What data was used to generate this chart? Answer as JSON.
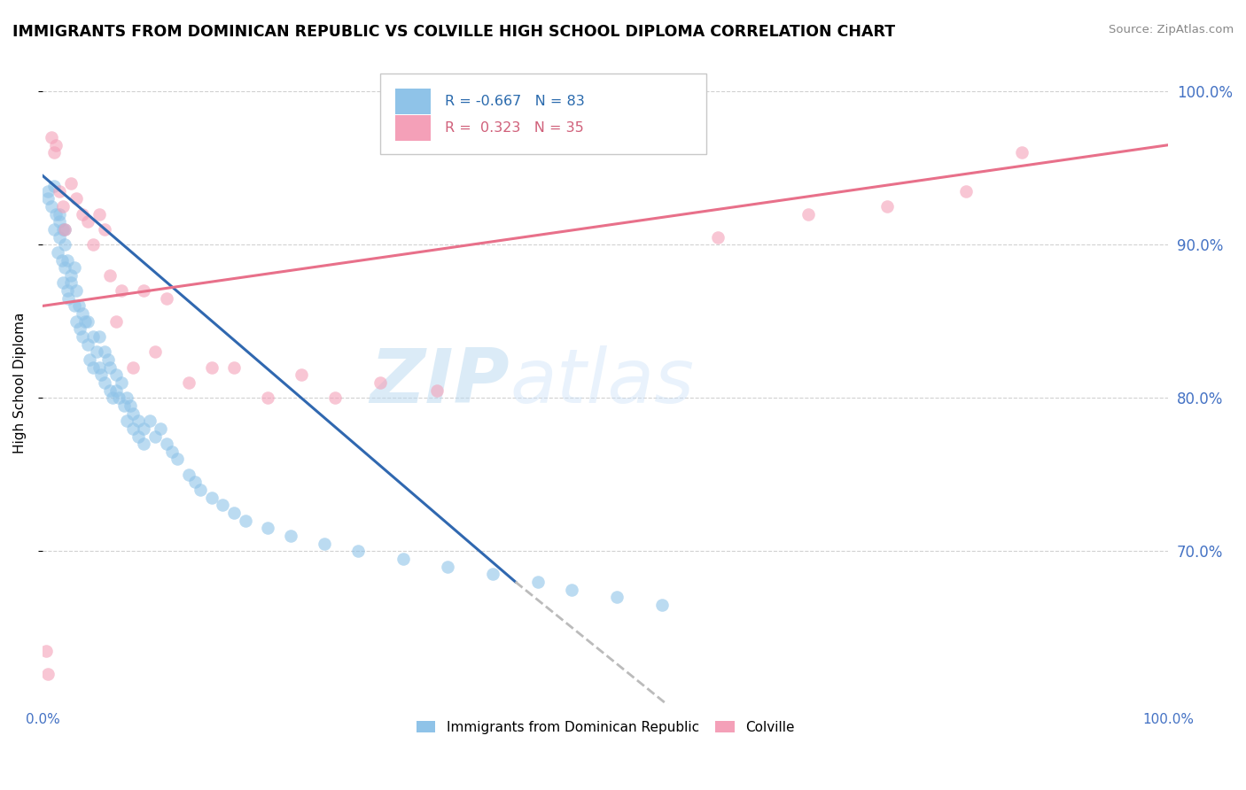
{
  "title": "IMMIGRANTS FROM DOMINICAN REPUBLIC VS COLVILLE HIGH SCHOOL DIPLOMA CORRELATION CHART",
  "source": "Source: ZipAtlas.com",
  "ylabel": "High School Diploma",
  "legend_label1": "Immigrants from Dominican Republic",
  "legend_label2": "Colville",
  "R1": "-0.667",
  "N1": "83",
  "R2": "0.323",
  "N2": "35",
  "color_blue": "#8fc3e8",
  "color_pink": "#f4a0b8",
  "color_blue_line": "#3068b0",
  "color_pink_line": "#e8708a",
  "color_dashed": "#bbbbbb",
  "blue_x": [
    0.5,
    0.5,
    0.8,
    1.0,
    1.0,
    1.2,
    1.3,
    1.5,
    1.5,
    1.5,
    1.7,
    1.8,
    1.8,
    2.0,
    2.0,
    2.0,
    2.2,
    2.2,
    2.3,
    2.5,
    2.5,
    2.8,
    2.8,
    3.0,
    3.0,
    3.2,
    3.3,
    3.5,
    3.5,
    3.8,
    4.0,
    4.0,
    4.2,
    4.5,
    4.5,
    4.8,
    5.0,
    5.0,
    5.2,
    5.5,
    5.5,
    5.8,
    6.0,
    6.0,
    6.2,
    6.5,
    6.5,
    6.8,
    7.0,
    7.2,
    7.5,
    7.5,
    7.8,
    8.0,
    8.0,
    8.5,
    8.5,
    9.0,
    9.0,
    9.5,
    10.0,
    10.5,
    11.0,
    11.5,
    12.0,
    13.0,
    13.5,
    14.0,
    15.0,
    16.0,
    17.0,
    18.0,
    20.0,
    22.0,
    25.0,
    28.0,
    32.0,
    36.0,
    40.0,
    44.0,
    47.0,
    51.0,
    55.0
  ],
  "blue_y": [
    93.5,
    93.0,
    92.5,
    93.8,
    91.0,
    92.0,
    89.5,
    91.5,
    90.5,
    92.0,
    89.0,
    91.0,
    87.5,
    90.0,
    88.5,
    91.0,
    87.0,
    89.0,
    86.5,
    88.0,
    87.5,
    86.0,
    88.5,
    85.0,
    87.0,
    86.0,
    84.5,
    85.5,
    84.0,
    85.0,
    83.5,
    85.0,
    82.5,
    84.0,
    82.0,
    83.0,
    82.0,
    84.0,
    81.5,
    83.0,
    81.0,
    82.5,
    80.5,
    82.0,
    80.0,
    81.5,
    80.5,
    80.0,
    81.0,
    79.5,
    80.0,
    78.5,
    79.5,
    79.0,
    78.0,
    78.5,
    77.5,
    78.0,
    77.0,
    78.5,
    77.5,
    78.0,
    77.0,
    76.5,
    76.0,
    75.0,
    74.5,
    74.0,
    73.5,
    73.0,
    72.5,
    72.0,
    71.5,
    71.0,
    70.5,
    70.0,
    69.5,
    69.0,
    68.5,
    68.0,
    67.5,
    67.0,
    66.5
  ],
  "pink_x": [
    0.3,
    0.5,
    0.8,
    1.0,
    1.2,
    1.5,
    1.8,
    2.0,
    2.5,
    3.0,
    3.5,
    4.0,
    4.5,
    5.0,
    5.5,
    6.0,
    6.5,
    7.0,
    8.0,
    9.0,
    10.0,
    11.0,
    13.0,
    15.0,
    17.0,
    20.0,
    23.0,
    26.0,
    30.0,
    35.0,
    60.0,
    68.0,
    75.0,
    82.0,
    87.0
  ],
  "pink_y": [
    63.5,
    62.0,
    97.0,
    96.0,
    96.5,
    93.5,
    92.5,
    91.0,
    94.0,
    93.0,
    92.0,
    91.5,
    90.0,
    92.0,
    91.0,
    88.0,
    85.0,
    87.0,
    82.0,
    87.0,
    83.0,
    86.5,
    81.0,
    82.0,
    82.0,
    80.0,
    81.5,
    80.0,
    81.0,
    80.5,
    90.5,
    92.0,
    92.5,
    93.5,
    96.0
  ],
  "xlim": [
    0.0,
    100.0
  ],
  "ylim_min": 60.0,
  "ylim_max": 102.0,
  "yticks": [
    70.0,
    80.0,
    90.0,
    100.0
  ],
  "ytick_labels": [
    "70.0%",
    "80.0%",
    "90.0%",
    "100.0%"
  ],
  "blue_line_x_start": 0.0,
  "blue_line_x_end": 42.0,
  "blue_line_y_start": 94.5,
  "blue_line_y_end": 68.0,
  "dashed_x_start": 42.0,
  "dashed_x_end": 58.0,
  "dashed_y_start": 68.0,
  "dashed_y_end": 58.5,
  "pink_line_x_start": 0.0,
  "pink_line_x_end": 100.0,
  "pink_line_y_start": 86.0,
  "pink_line_y_end": 96.5,
  "watermark_zip": "ZIP",
  "watermark_atlas": "atlas"
}
